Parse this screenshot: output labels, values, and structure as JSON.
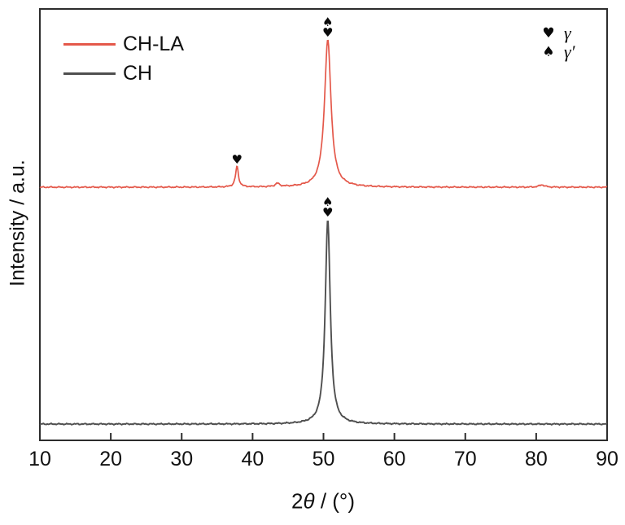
{
  "figure": {
    "background": "#ffffff",
    "frame_color": "#2d2d2d",
    "text_color": "#111111",
    "y_axis_title": "Intensity / a.u.",
    "x_axis_title": {
      "leading": "2",
      "theta": "θ",
      "trailing": " / (°)"
    }
  },
  "chart_data": {
    "type": "line",
    "subtype": "xrd-pattern-stacked",
    "title": "",
    "xlabel": "2θ / (°)",
    "ylabel": "Intensity / a.u.",
    "xlim": [
      10,
      90
    ],
    "x_ticks": [
      10,
      20,
      30,
      40,
      50,
      60,
      70,
      80,
      90
    ],
    "grid": false,
    "legend_position": "upper-left-inside",
    "marker_glyphs": {
      "heart": "♥",
      "spade": "♠"
    },
    "phase_legend": [
      {
        "marker": "heart",
        "symbol": "♥",
        "label": "γ"
      },
      {
        "marker": "spade",
        "symbol": "♠",
        "label": "γ′"
      }
    ],
    "series": [
      {
        "name": "CH-LA",
        "color": "#e4584a",
        "peaks": [
          {
            "two_theta": 37.8,
            "rel_intensity": 0.14,
            "fwhm_deg": 0.5,
            "markers": [
              "heart"
            ]
          },
          {
            "two_theta": 43.5,
            "rel_intensity": 0.022,
            "fwhm_deg": 0.7,
            "markers": []
          },
          {
            "two_theta": 50.6,
            "rel_intensity": 1.0,
            "fwhm_deg": 1.1,
            "markers": [
              "spade",
              "heart"
            ]
          },
          {
            "two_theta": 80.8,
            "rel_intensity": 0.016,
            "fwhm_deg": 0.9,
            "markers": []
          }
        ]
      },
      {
        "name": "CH",
        "color": "#4f4f4f",
        "peaks": [
          {
            "two_theta": 50.6,
            "rel_intensity": 1.0,
            "fwhm_deg": 0.85,
            "markers": [
              "spade",
              "heart"
            ]
          }
        ]
      }
    ]
  }
}
